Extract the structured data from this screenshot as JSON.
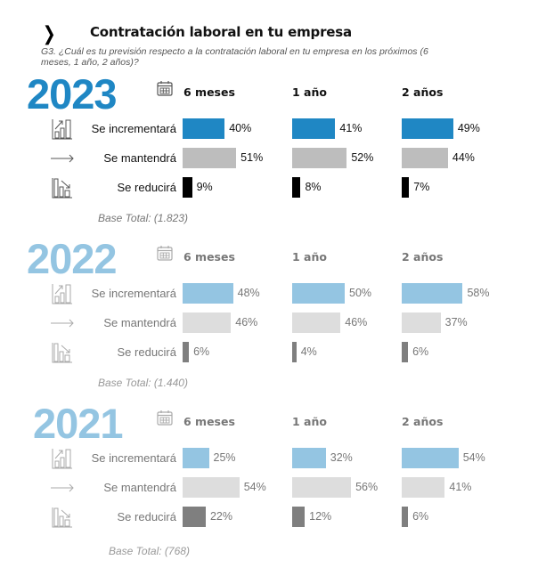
{
  "header": {
    "chevron": "❯",
    "title": "Contratación laboral en tu empresa",
    "question": "G3. ¿Cuál es tu previsión respecto a la contratación laboral en tu empresa en los próximos (6 meses, 1 año, 2 años)?"
  },
  "colors": {
    "year_2023": "#1f87c4",
    "year_past": "#94c5e2",
    "inc_2023": "#1f87c4",
    "man_2023": "#bdbdbd",
    "red_2023": "#000000",
    "inc_past": "#94c5e2",
    "man_past": "#dddddd",
    "red_past": "#7f7f7f",
    "text_2023": "#111111",
    "text_past": "#888888"
  },
  "chart_data": {
    "type": "bar",
    "title": "Contratación laboral en tu empresa",
    "subtitle": "G3. ¿Cuál es tu previsión respecto a la contratación laboral en tu empresa en los próximos (6 meses, 1 año, 2 años)?",
    "periods": [
      "6 meses",
      "1 año",
      "2 años"
    ],
    "categories": [
      "Se incrementará",
      "Se mantendrá",
      "Se reducirá"
    ],
    "unit": "%",
    "panels": [
      {
        "year": "2023",
        "base": "Base Total: (1.823)",
        "series": [
          {
            "name": "6 meses",
            "values": [
              40,
              51,
              9
            ]
          },
          {
            "name": "1 año",
            "values": [
              41,
              52,
              8
            ]
          },
          {
            "name": "2 años",
            "values": [
              49,
              44,
              7
            ]
          }
        ]
      },
      {
        "year": "2022",
        "base": "Base Total: (1.440)",
        "series": [
          {
            "name": "6 meses",
            "values": [
              48,
              46,
              6
            ]
          },
          {
            "name": "1 año",
            "values": [
              50,
              46,
              4
            ]
          },
          {
            "name": "2 años",
            "values": [
              58,
              37,
              6
            ]
          }
        ]
      },
      {
        "year": "2021",
        "base": "Base Total: (768)",
        "series": [
          {
            "name": "6 meses",
            "values": [
              25,
              54,
              22
            ]
          },
          {
            "name": "1 año",
            "values": [
              32,
              56,
              12
            ]
          },
          {
            "name": "2 años",
            "values": [
              54,
              41,
              6
            ]
          }
        ]
      }
    ]
  }
}
